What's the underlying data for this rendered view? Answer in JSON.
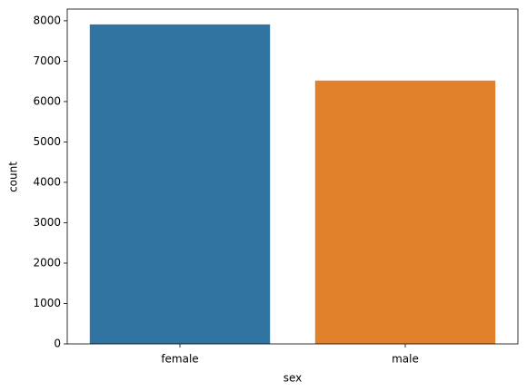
{
  "chart_data": {
    "type": "bar",
    "x_label": "sex",
    "y_label": "count",
    "categories": [
      "female",
      "male"
    ],
    "values": [
      7910,
      6520
    ],
    "colors": [
      "#3274a1",
      "#e1812c"
    ],
    "ylim": [
      0,
      8290
    ],
    "yticks": [
      0,
      1000,
      2000,
      3000,
      4000,
      5000,
      6000,
      7000,
      8000
    ],
    "grid": false
  }
}
